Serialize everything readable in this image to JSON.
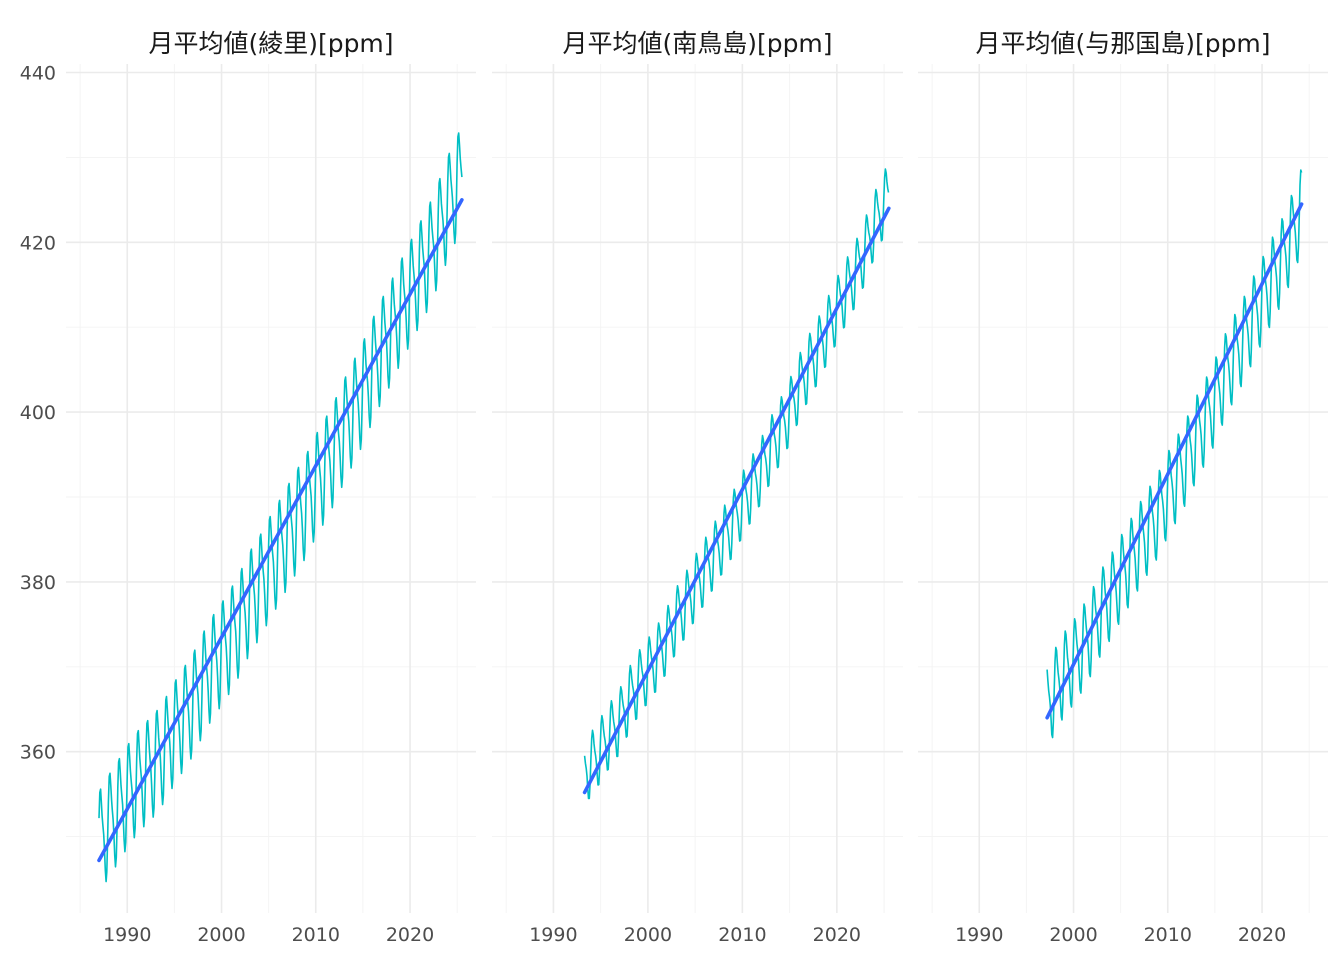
{
  "chart_data": {
    "type": "line",
    "layout": "small-multiples",
    "grid": true,
    "legend": "none",
    "ylim": [
      341,
      441
    ],
    "y_ticks": [
      360,
      380,
      400,
      420,
      440
    ],
    "xlim": [
      1983.5,
      2027
    ],
    "x_ticks": [
      1990,
      2000,
      2010,
      2020
    ],
    "colors": {
      "observed": "#00bfc4",
      "trend": "#3366ff"
    },
    "panels": [
      {
        "title": "月平均値(綾里)[ppm]",
        "x_start": 1987.0,
        "x_end": 2025.5,
        "annual_mean": [
          [
            1987,
            349.6
          ],
          [
            1988,
            351.5
          ],
          [
            1989,
            353.2
          ],
          [
            1990,
            355.0
          ],
          [
            1991,
            356.6
          ],
          [
            1992,
            357.8
          ],
          [
            1993,
            358.9
          ],
          [
            1994,
            360.5
          ],
          [
            1995,
            362.5
          ],
          [
            1996,
            364.2
          ],
          [
            1997,
            365.9
          ],
          [
            1998,
            368.2
          ],
          [
            1999,
            370.2
          ],
          [
            2000,
            371.8
          ],
          [
            2001,
            373.5
          ],
          [
            2002,
            375.5
          ],
          [
            2003,
            377.9
          ],
          [
            2004,
            379.6
          ],
          [
            2005,
            381.7
          ],
          [
            2006,
            383.6
          ],
          [
            2007,
            385.6
          ],
          [
            2008,
            387.5
          ],
          [
            2009,
            389.3
          ],
          [
            2010,
            391.6
          ],
          [
            2011,
            393.5
          ],
          [
            2012,
            395.6
          ],
          [
            2013,
            398.1
          ],
          [
            2014,
            400.3
          ],
          [
            2015,
            402.5
          ],
          [
            2016,
            405.2
          ],
          [
            2017,
            407.6
          ],
          [
            2018,
            409.7
          ],
          [
            2019,
            412.1
          ],
          [
            2020,
            414.3
          ],
          [
            2021,
            416.5
          ],
          [
            2022,
            418.6
          ],
          [
            2023,
            421.3
          ],
          [
            2024,
            424.4
          ],
          [
            2025,
            426.8
          ]
        ],
        "seasonal_amplitude": 5.4,
        "trend": {
          "x": [
            1987.0,
            2025.5
          ],
          "y": [
            347.2,
            425.0
          ]
        }
      },
      {
        "title": "月平均値(南鳥島)[ppm]",
        "x_start": 1993.3,
        "x_end": 2025.5,
        "annual_mean": [
          [
            1993,
            357.3
          ],
          [
            1994,
            358.6
          ],
          [
            1995,
            360.3
          ],
          [
            1996,
            362.1
          ],
          [
            1997,
            363.6
          ],
          [
            1998,
            366.2
          ],
          [
            1999,
            368.1
          ],
          [
            2000,
            369.6
          ],
          [
            2001,
            371.2
          ],
          [
            2002,
            373.2
          ],
          [
            2003,
            375.6
          ],
          [
            2004,
            377.4
          ],
          [
            2005,
            379.4
          ],
          [
            2006,
            381.3
          ],
          [
            2007,
            383.2
          ],
          [
            2008,
            385.1
          ],
          [
            2009,
            386.9
          ],
          [
            2010,
            389.2
          ],
          [
            2011,
            391.1
          ],
          [
            2012,
            393.2
          ],
          [
            2013,
            395.7
          ],
          [
            2014,
            397.8
          ],
          [
            2015,
            400.1
          ],
          [
            2016,
            403.0
          ],
          [
            2017,
            405.3
          ],
          [
            2018,
            407.3
          ],
          [
            2019,
            409.7
          ],
          [
            2020,
            412.1
          ],
          [
            2021,
            414.3
          ],
          [
            2022,
            416.4
          ],
          [
            2023,
            419.1
          ],
          [
            2024,
            422.2
          ],
          [
            2025,
            424.6
          ]
        ],
        "seasonal_amplitude": 3.4,
        "trend": {
          "x": [
            1993.3,
            2025.5
          ],
          "y": [
            355.2,
            424.0
          ]
        }
      },
      {
        "title": "月平均値(与那国島)[ppm]",
        "x_start": 1997.2,
        "x_end": 2024.2,
        "annual_mean": [
          [
            1997,
            365.0
          ],
          [
            1998,
            367.3
          ],
          [
            1999,
            369.3
          ],
          [
            2000,
            370.7
          ],
          [
            2001,
            372.4
          ],
          [
            2002,
            374.4
          ],
          [
            2003,
            376.8
          ],
          [
            2004,
            378.5
          ],
          [
            2005,
            380.6
          ],
          [
            2006,
            382.5
          ],
          [
            2007,
            384.5
          ],
          [
            2008,
            386.3
          ],
          [
            2009,
            388.1
          ],
          [
            2010,
            390.5
          ],
          [
            2011,
            392.4
          ],
          [
            2012,
            394.5
          ],
          [
            2013,
            397.0
          ],
          [
            2014,
            399.1
          ],
          [
            2015,
            401.4
          ],
          [
            2016,
            404.2
          ],
          [
            2017,
            406.5
          ],
          [
            2018,
            408.6
          ],
          [
            2019,
            411.0
          ],
          [
            2020,
            413.3
          ],
          [
            2021,
            415.6
          ],
          [
            2022,
            417.7
          ],
          [
            2023,
            420.4
          ],
          [
            2024,
            423.4
          ]
        ],
        "seasonal_amplitude": 4.4,
        "trend": {
          "x": [
            1997.2,
            2024.2
          ],
          "y": [
            364.0,
            424.5
          ]
        }
      }
    ]
  }
}
